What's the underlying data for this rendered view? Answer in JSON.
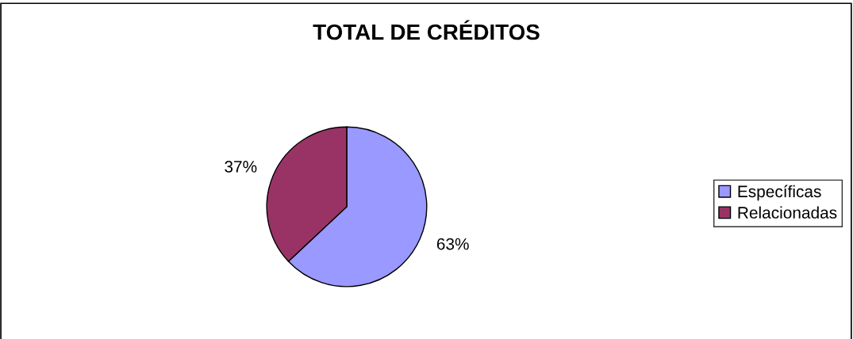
{
  "chart_data": {
    "type": "pie",
    "title": "TOTAL DE CRÉDITOS",
    "categories": [
      "Específicas",
      "Relacionadas"
    ],
    "values": [
      63,
      37
    ],
    "value_labels": [
      "63%",
      "37%"
    ],
    "colors": [
      "#9999ff",
      "#993366"
    ],
    "legend": "right"
  }
}
